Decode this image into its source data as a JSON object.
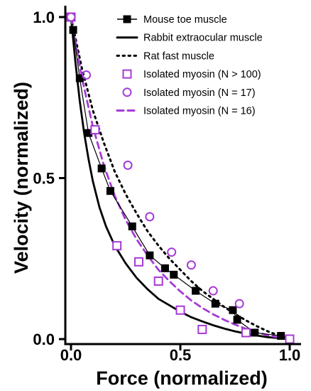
{
  "chart_data": {
    "type": "scatter",
    "xlabel": "Force (normalized)",
    "ylabel": "Velocity (normalized)",
    "xlim": [
      0,
      1
    ],
    "ylim": [
      0,
      1
    ],
    "xticks": [
      0.0,
      0.5,
      1.0
    ],
    "yticks": [
      0.0,
      0.5,
      1.0
    ],
    "xtick_labels": [
      "0.0",
      "0.5",
      "1.0"
    ],
    "ytick_labels": [
      "0.0",
      "0.5",
      "1.0"
    ],
    "grid": false,
    "legend_position": "top-right",
    "colors": {
      "black": "#000000",
      "purple": "#a63ad6"
    },
    "series": [
      {
        "name": "Mouse toe muscle",
        "kind": "markers-line",
        "marker": "square-filled",
        "color": "#000000",
        "points": [
          [
            0.01,
            0.96
          ],
          [
            0.04,
            0.81
          ],
          [
            0.08,
            0.64
          ],
          [
            0.14,
            0.53
          ],
          [
            0.18,
            0.46
          ],
          [
            0.28,
            0.35
          ],
          [
            0.36,
            0.26
          ],
          [
            0.43,
            0.22
          ],
          [
            0.47,
            0.2
          ],
          [
            0.57,
            0.15
          ],
          [
            0.66,
            0.11
          ],
          [
            0.74,
            0.09
          ],
          [
            0.76,
            0.06
          ],
          [
            0.84,
            0.02
          ],
          [
            0.96,
            0.01
          ]
        ]
      },
      {
        "name": "Rabbit extraocular muscle",
        "kind": "line",
        "style": "solid",
        "color": "#000000",
        "points": [
          [
            0.0,
            1.0
          ],
          [
            0.02,
            0.86
          ],
          [
            0.04,
            0.74
          ],
          [
            0.06,
            0.64
          ],
          [
            0.08,
            0.56
          ],
          [
            0.1,
            0.49
          ],
          [
            0.13,
            0.41
          ],
          [
            0.16,
            0.35
          ],
          [
            0.2,
            0.29
          ],
          [
            0.25,
            0.235
          ],
          [
            0.3,
            0.19
          ],
          [
            0.35,
            0.155
          ],
          [
            0.4,
            0.125
          ],
          [
            0.45,
            0.105
          ],
          [
            0.5,
            0.085
          ],
          [
            0.55,
            0.068
          ],
          [
            0.6,
            0.055
          ],
          [
            0.65,
            0.043
          ],
          [
            0.7,
            0.033
          ],
          [
            0.75,
            0.024
          ],
          [
            0.8,
            0.017
          ],
          [
            0.85,
            0.011
          ],
          [
            0.9,
            0.006
          ],
          [
            0.95,
            0.003
          ],
          [
            1.0,
            0.0
          ]
        ]
      },
      {
        "name": "Rat fast muscle",
        "kind": "line",
        "style": "dotted",
        "color": "#000000",
        "points": [
          [
            0.0,
            1.0
          ],
          [
            0.05,
            0.84
          ],
          [
            0.1,
            0.71
          ],
          [
            0.15,
            0.61
          ],
          [
            0.2,
            0.52
          ],
          [
            0.25,
            0.45
          ],
          [
            0.3,
            0.39
          ],
          [
            0.35,
            0.335
          ],
          [
            0.4,
            0.29
          ],
          [
            0.45,
            0.25
          ],
          [
            0.5,
            0.215
          ],
          [
            0.55,
            0.18
          ],
          [
            0.6,
            0.15
          ],
          [
            0.65,
            0.125
          ],
          [
            0.7,
            0.1
          ],
          [
            0.75,
            0.078
          ],
          [
            0.8,
            0.058
          ],
          [
            0.85,
            0.04
          ],
          [
            0.9,
            0.024
          ],
          [
            0.95,
            0.011
          ],
          [
            1.0,
            0.0
          ]
        ]
      },
      {
        "name": "Isolated myosin (N > 100)",
        "kind": "markers",
        "marker": "square-open",
        "color": "#a63ad6",
        "points": [
          [
            0.0,
            1.0
          ],
          [
            0.11,
            0.65
          ],
          [
            0.21,
            0.29
          ],
          [
            0.31,
            0.24
          ],
          [
            0.4,
            0.18
          ],
          [
            0.5,
            0.09
          ],
          [
            0.6,
            0.03
          ],
          [
            0.8,
            0.02
          ],
          [
            1.0,
            0.0
          ]
        ]
      },
      {
        "name": "Isolated myosin (N = 17)",
        "kind": "markers",
        "marker": "circle-open",
        "color": "#a63ad6",
        "points": [
          [
            0.0,
            1.0
          ],
          [
            0.07,
            0.82
          ],
          [
            0.26,
            0.54
          ],
          [
            0.36,
            0.38
          ],
          [
            0.46,
            0.27
          ],
          [
            0.55,
            0.23
          ],
          [
            0.65,
            0.15
          ],
          [
            0.77,
            0.11
          ]
        ]
      },
      {
        "name": "Isolated myosin (N = 16)",
        "kind": "line",
        "style": "dashed",
        "color": "#a63ad6",
        "points": [
          [
            0.0,
            1.0
          ],
          [
            0.05,
            0.81
          ],
          [
            0.1,
            0.66
          ],
          [
            0.15,
            0.54
          ],
          [
            0.2,
            0.445
          ],
          [
            0.25,
            0.37
          ],
          [
            0.3,
            0.31
          ],
          [
            0.35,
            0.26
          ],
          [
            0.4,
            0.215
          ],
          [
            0.45,
            0.18
          ],
          [
            0.5,
            0.148
          ],
          [
            0.55,
            0.12
          ],
          [
            0.6,
            0.097
          ],
          [
            0.65,
            0.077
          ],
          [
            0.7,
            0.06
          ],
          [
            0.75,
            0.045
          ],
          [
            0.8,
            0.032
          ],
          [
            0.85,
            0.021
          ],
          [
            0.9,
            0.012
          ],
          [
            0.95,
            0.005
          ],
          [
            1.0,
            0.0
          ]
        ]
      }
    ]
  }
}
